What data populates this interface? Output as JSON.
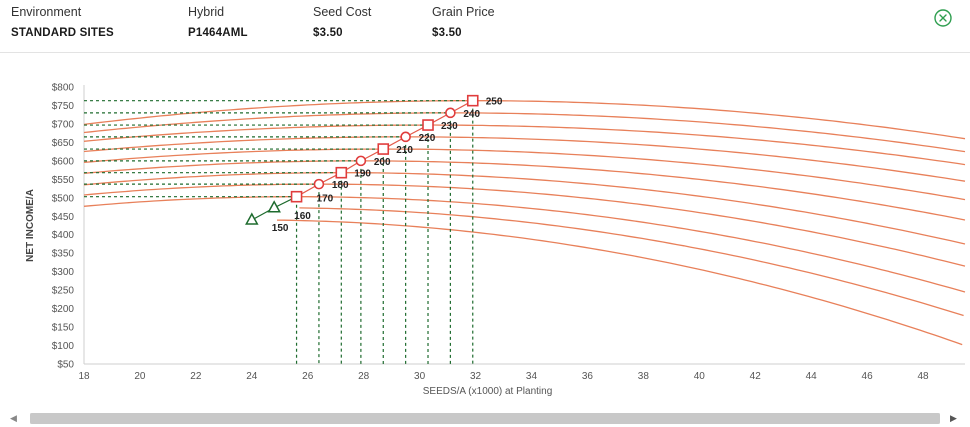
{
  "header": {
    "environment": {
      "label": "Environment",
      "value": "STANDARD SITES"
    },
    "hybrid": {
      "label": "Hybrid",
      "value": "P1464AML"
    },
    "seed_cost": {
      "label": "Seed Cost",
      "value": "$3.50"
    },
    "grain_price": {
      "label": "Grain Price",
      "value": "$3.50"
    },
    "close_icon": "circle-x-icon",
    "accent_color": "#2e9e4f"
  },
  "chart_data": {
    "type": "line",
    "xlabel": "SEEDS/A (x1000) at Planting",
    "ylabel": "NET INCOME/A",
    "xlim": [
      18,
      49.5
    ],
    "ylim": [
      50,
      800
    ],
    "x_ticks": [
      18,
      20,
      22,
      24,
      26,
      28,
      30,
      32,
      34,
      36,
      38,
      40,
      42,
      44,
      46,
      48
    ],
    "y_ticks": [
      50,
      100,
      150,
      200,
      250,
      300,
      350,
      400,
      450,
      500,
      550,
      600,
      650,
      700,
      750,
      800
    ],
    "y_tick_labels": [
      "$50",
      "$100",
      "$150",
      "$200",
      "$250",
      "$300",
      "$350",
      "$400",
      "$450",
      "$500",
      "$550",
      "$600",
      "$650",
      "$700",
      "$750",
      "$800"
    ],
    "curve_color": "#e8805a",
    "optimum_line_color": "#1e6b2e",
    "series": [
      {
        "label": "150",
        "opt_x": 24.0,
        "opt_y": 440,
        "end_y": 100,
        "marker": "triangle"
      },
      {
        "label": "160",
        "opt_x": 24.8,
        "opt_y": 473,
        "end_y": 180,
        "marker": "triangle"
      },
      {
        "label": "170",
        "opt_x": 25.6,
        "opt_y": 503,
        "end_y": 245,
        "marker": "square"
      },
      {
        "label": "180",
        "opt_x": 26.4,
        "opt_y": 537,
        "end_y": 315,
        "marker": "circle"
      },
      {
        "label": "190",
        "opt_x": 27.2,
        "opt_y": 568,
        "end_y": 375,
        "marker": "square"
      },
      {
        "label": "200",
        "opt_x": 27.9,
        "opt_y": 600,
        "end_y": 440,
        "marker": "circle"
      },
      {
        "label": "210",
        "opt_x": 28.7,
        "opt_y": 632,
        "end_y": 495,
        "marker": "square"
      },
      {
        "label": "220",
        "opt_x": 29.5,
        "opt_y": 665,
        "end_y": 545,
        "marker": "circle"
      },
      {
        "label": "230",
        "opt_x": 30.3,
        "opt_y": 697,
        "end_y": 590,
        "marker": "square"
      },
      {
        "label": "240",
        "opt_x": 31.1,
        "opt_y": 730,
        "end_y": 625,
        "marker": "circle"
      },
      {
        "label": "250",
        "opt_x": 31.9,
        "opt_y": 763,
        "end_y": 660,
        "marker": "square"
      }
    ]
  }
}
